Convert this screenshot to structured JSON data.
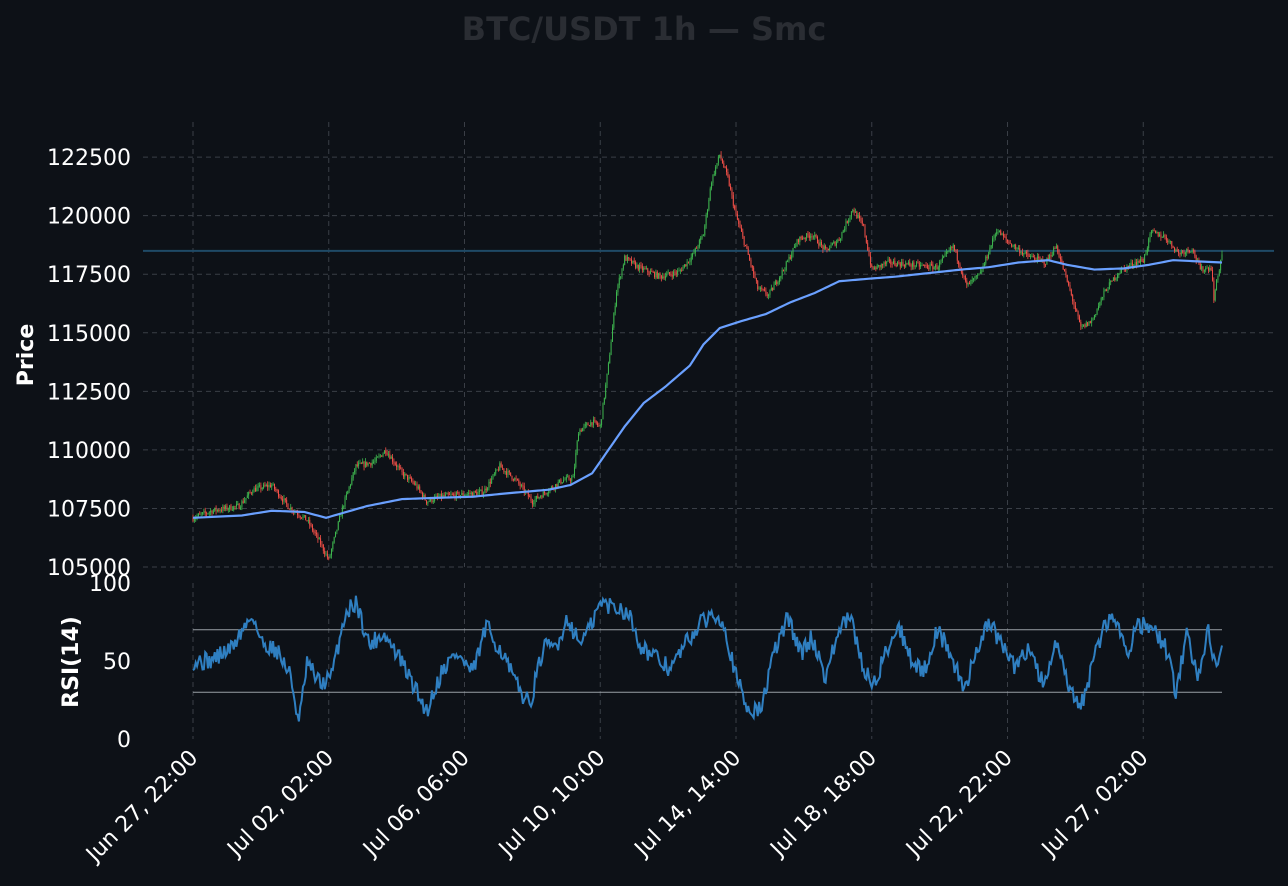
{
  "chart_data": {
    "title": "BTC/USDT 1h — Smc",
    "type": "candlestick",
    "timeframe": "1h",
    "x_range": [
      "2025-06-27 22:00",
      "2025-07-29 12:00"
    ],
    "x_tick_labels": [
      "Jun 27, 22:00",
      "Jul 02, 02:00",
      "Jul 06, 06:00",
      "Jul 10, 10:00",
      "Jul 14, 14:00",
      "Jul 18, 18:00",
      "Jul 22, 22:00",
      "Jul 27, 02:00"
    ],
    "grid": true,
    "colors": {
      "background": "#0d1117",
      "up": "#3fb950",
      "down": "#f85149",
      "ma": "#6aa0ff",
      "rsi": "#2f7fc1",
      "level_line": "#1f4a66",
      "title": "#2a2d33"
    },
    "price_panel": {
      "ylabel": "Price",
      "ylim": [
        105000,
        124000
      ],
      "yticks": [
        105000,
        107500,
        110000,
        112500,
        115000,
        117500,
        120000,
        122500
      ],
      "horizontal_level": 118500,
      "close_anchors": [
        [
          "2025-06-27 22:00",
          107100
        ],
        [
          "2025-06-28 12:00",
          107400
        ],
        [
          "2025-06-29 08:00",
          107600
        ],
        [
          "2025-06-29 18:00",
          108300
        ],
        [
          "2025-06-30 08:00",
          108500
        ],
        [
          "2025-06-30 20:00",
          107600
        ],
        [
          "2025-07-01 10:00",
          107000
        ],
        [
          "2025-07-01 20:00",
          106000
        ],
        [
          "2025-07-02 02:00",
          105300
        ],
        [
          "2025-07-02 12:00",
          107500
        ],
        [
          "2025-07-02 22:00",
          109300
        ],
        [
          "2025-07-03 12:00",
          109500
        ],
        [
          "2025-07-03 20:00",
          110000
        ],
        [
          "2025-07-04 08:00",
          109000
        ],
        [
          "2025-07-04 18:00",
          108500
        ],
        [
          "2025-07-05 02:00",
          107800
        ],
        [
          "2025-07-05 12:00",
          108000
        ],
        [
          "2025-07-06 06:00",
          108100
        ],
        [
          "2025-07-06 20:00",
          108200
        ],
        [
          "2025-07-07 08:00",
          109300
        ],
        [
          "2025-07-07 20:00",
          108700
        ],
        [
          "2025-07-08 08:00",
          107800
        ],
        [
          "2025-07-08 20:00",
          108300
        ],
        [
          "2025-07-09 06:00",
          108700
        ],
        [
          "2025-07-09 14:00",
          108800
        ],
        [
          "2025-07-09 18:00",
          110800
        ],
        [
          "2025-07-10 04:00",
          111200
        ],
        [
          "2025-07-10 10:00",
          111000
        ],
        [
          "2025-07-10 16:00",
          113600
        ],
        [
          "2025-07-10 22:00",
          116800
        ],
        [
          "2025-07-11 04:00",
          118200
        ],
        [
          "2025-07-11 14:00",
          117800
        ],
        [
          "2025-07-12 06:00",
          117400
        ],
        [
          "2025-07-12 20:00",
          117600
        ],
        [
          "2025-07-13 06:00",
          118300
        ],
        [
          "2025-07-13 14:00",
          119200
        ],
        [
          "2025-07-13 20:00",
          121500
        ],
        [
          "2025-07-14 02:00",
          122600
        ],
        [
          "2025-07-14 08:00",
          121600
        ],
        [
          "2025-07-14 14:00",
          120000
        ],
        [
          "2025-07-14 22:00",
          118500
        ],
        [
          "2025-07-15 06:00",
          116900
        ],
        [
          "2025-07-15 14:00",
          116600
        ],
        [
          "2025-07-16 02:00",
          117800
        ],
        [
          "2025-07-16 12:00",
          119000
        ],
        [
          "2025-07-16 22:00",
          119200
        ],
        [
          "2025-07-17 08:00",
          118500
        ],
        [
          "2025-07-17 18:00",
          119000
        ],
        [
          "2025-07-18 04:00",
          120300
        ],
        [
          "2025-07-18 12:00",
          119500
        ],
        [
          "2025-07-18 18:00",
          117700
        ],
        [
          "2025-07-19 06:00",
          118000
        ],
        [
          "2025-07-20 00:00",
          117900
        ],
        [
          "2025-07-20 18:00",
          117800
        ],
        [
          "2025-07-21 06:00",
          118700
        ],
        [
          "2025-07-21 16:00",
          117000
        ],
        [
          "2025-07-22 02:00",
          117500
        ],
        [
          "2025-07-22 14:00",
          119400
        ],
        [
          "2025-07-22 22:00",
          118900
        ],
        [
          "2025-07-23 12:00",
          118300
        ],
        [
          "2025-07-24 02:00",
          118000
        ],
        [
          "2025-07-24 10:00",
          118700
        ],
        [
          "2025-07-24 20:00",
          116800
        ],
        [
          "2025-07-25 04:00",
          115200
        ],
        [
          "2025-07-25 12:00",
          115500
        ],
        [
          "2025-07-25 22:00",
          116800
        ],
        [
          "2025-07-26 08:00",
          117600
        ],
        [
          "2025-07-26 20:00",
          118000
        ],
        [
          "2025-07-27 02:00",
          118100
        ],
        [
          "2025-07-27 08:00",
          119300
        ],
        [
          "2025-07-27 18:00",
          119100
        ],
        [
          "2025-07-28 04:00",
          118400
        ],
        [
          "2025-07-28 14:00",
          118600
        ],
        [
          "2025-07-28 20:00",
          117700
        ],
        [
          "2025-07-29 04:00",
          117800
        ],
        [
          "2025-07-29 06:00",
          116500
        ],
        [
          "2025-07-29 12:00",
          118400
        ]
      ],
      "ma_anchors": [
        [
          "2025-06-27 22:00",
          107100
        ],
        [
          "2025-06-29 10:00",
          107200
        ],
        [
          "2025-06-30 08:00",
          107400
        ],
        [
          "2025-07-01 08:00",
          107350
        ],
        [
          "2025-07-02 00:00",
          107100
        ],
        [
          "2025-07-03 06:00",
          107600
        ],
        [
          "2025-07-04 08:00",
          107900
        ],
        [
          "2025-07-05 08:00",
          107950
        ],
        [
          "2025-07-06 12:00",
          108000
        ],
        [
          "2025-07-07 14:00",
          108150
        ],
        [
          "2025-07-08 20:00",
          108300
        ],
        [
          "2025-07-09 12:00",
          108500
        ],
        [
          "2025-07-10 04:00",
          109000
        ],
        [
          "2025-07-10 16:00",
          110000
        ],
        [
          "2025-07-11 04:00",
          111000
        ],
        [
          "2025-07-11 18:00",
          112000
        ],
        [
          "2025-07-12 10:00",
          112700
        ],
        [
          "2025-07-13 04:00",
          113600
        ],
        [
          "2025-07-13 14:00",
          114500
        ],
        [
          "2025-07-14 02:00",
          115200
        ],
        [
          "2025-07-14 18:00",
          115500
        ],
        [
          "2025-07-15 12:00",
          115800
        ],
        [
          "2025-07-16 06:00",
          116300
        ],
        [
          "2025-07-17 00:00",
          116700
        ],
        [
          "2025-07-17 18:00",
          117200
        ],
        [
          "2025-07-18 14:00",
          117300
        ],
        [
          "2025-07-19 12:00",
          117400
        ],
        [
          "2025-07-20 12:00",
          117550
        ],
        [
          "2025-07-21 12:00",
          117700
        ],
        [
          "2025-07-22 08:00",
          117800
        ],
        [
          "2025-07-23 06:00",
          118000
        ],
        [
          "2025-07-24 04:00",
          118100
        ],
        [
          "2025-07-24 18:00",
          117900
        ],
        [
          "2025-07-25 14:00",
          117700
        ],
        [
          "2025-07-26 12:00",
          117750
        ],
        [
          "2025-07-27 06:00",
          117900
        ],
        [
          "2025-07-28 00:00",
          118100
        ],
        [
          "2025-07-28 18:00",
          118050
        ],
        [
          "2025-07-29 12:00",
          118000
        ]
      ]
    },
    "rsi_panel": {
      "ylabel": "RSI(14)",
      "ylim": [
        0,
        100
      ],
      "yticks": [
        0,
        50,
        100
      ],
      "overbought": 70,
      "oversold": 30,
      "anchors": [
        [
          "2025-06-27 22:00",
          50
        ],
        [
          "2025-06-28 10:00",
          50
        ],
        [
          "2025-06-29 02:00",
          58
        ],
        [
          "2025-06-29 18:00",
          80
        ],
        [
          "2025-06-30 00:00",
          62
        ],
        [
          "2025-06-30 12:00",
          57
        ],
        [
          "2025-06-30 22:00",
          40
        ],
        [
          "2025-07-01 04:00",
          10
        ],
        [
          "2025-07-01 10:00",
          48
        ],
        [
          "2025-07-01 20:00",
          35
        ],
        [
          "2025-07-02 04:00",
          40
        ],
        [
          "2025-07-02 14:00",
          80
        ],
        [
          "2025-07-02 22:00",
          88
        ],
        [
          "2025-07-03 08:00",
          60
        ],
        [
          "2025-07-03 18:00",
          68
        ],
        [
          "2025-07-04 06:00",
          52
        ],
        [
          "2025-07-04 16:00",
          35
        ],
        [
          "2025-07-05 02:00",
          18
        ],
        [
          "2025-07-05 14:00",
          45
        ],
        [
          "2025-07-06 00:00",
          55
        ],
        [
          "2025-07-06 12:00",
          42
        ],
        [
          "2025-07-06 22:00",
          72
        ],
        [
          "2025-07-07 10:00",
          55
        ],
        [
          "2025-07-07 20:00",
          35
        ],
        [
          "2025-07-08 06:00",
          22
        ],
        [
          "2025-07-08 16:00",
          58
        ],
        [
          "2025-07-09 02:00",
          60
        ],
        [
          "2025-07-09 10:00",
          78
        ],
        [
          "2025-07-09 18:00",
          62
        ],
        [
          "2025-07-10 02:00",
          70
        ],
        [
          "2025-07-10 10:00",
          87
        ],
        [
          "2025-07-10 20:00",
          85
        ],
        [
          "2025-07-11 06:00",
          82
        ],
        [
          "2025-07-11 16:00",
          60
        ],
        [
          "2025-07-12 02:00",
          52
        ],
        [
          "2025-07-12 14:00",
          45
        ],
        [
          "2025-07-13 00:00",
          60
        ],
        [
          "2025-07-13 10:00",
          72
        ],
        [
          "2025-07-13 20:00",
          80
        ],
        [
          "2025-07-14 04:00",
          78
        ],
        [
          "2025-07-14 14:00",
          40
        ],
        [
          "2025-07-14 22:00",
          20
        ],
        [
          "2025-07-15 08:00",
          18
        ],
        [
          "2025-07-15 18:00",
          55
        ],
        [
          "2025-07-16 04:00",
          78
        ],
        [
          "2025-07-16 14:00",
          55
        ],
        [
          "2025-07-16 22:00",
          65
        ],
        [
          "2025-07-17 08:00",
          40
        ],
        [
          "2025-07-17 18:00",
          70
        ],
        [
          "2025-07-18 02:00",
          78
        ],
        [
          "2025-07-18 12:00",
          45
        ],
        [
          "2025-07-18 20:00",
          35
        ],
        [
          "2025-07-19 06:00",
          60
        ],
        [
          "2025-07-19 14:00",
          72
        ],
        [
          "2025-07-20 00:00",
          50
        ],
        [
          "2025-07-20 08:00",
          42
        ],
        [
          "2025-07-20 18:00",
          70
        ],
        [
          "2025-07-21 04:00",
          55
        ],
        [
          "2025-07-21 14:00",
          30
        ],
        [
          "2025-07-21 22:00",
          55
        ],
        [
          "2025-07-22 08:00",
          75
        ],
        [
          "2025-07-22 18:00",
          60
        ],
        [
          "2025-07-23 04:00",
          45
        ],
        [
          "2025-07-23 14:00",
          60
        ],
        [
          "2025-07-24 00:00",
          35
        ],
        [
          "2025-07-24 10:00",
          60
        ],
        [
          "2025-07-24 20:00",
          30
        ],
        [
          "2025-07-25 04:00",
          20
        ],
        [
          "2025-07-25 12:00",
          45
        ],
        [
          "2025-07-25 20:00",
          70
        ],
        [
          "2025-07-26 04:00",
          80
        ],
        [
          "2025-07-26 14:00",
          55
        ],
        [
          "2025-07-26 22:00",
          75
        ],
        [
          "2025-07-27 08:00",
          70
        ],
        [
          "2025-07-27 18:00",
          60
        ],
        [
          "2025-07-28 02:00",
          30
        ],
        [
          "2025-07-28 10:00",
          68
        ],
        [
          "2025-07-28 18:00",
          40
        ],
        [
          "2025-07-29 02:00",
          70
        ],
        [
          "2025-07-29 08:00",
          45
        ],
        [
          "2025-07-29 12:00",
          55
        ]
      ]
    }
  }
}
